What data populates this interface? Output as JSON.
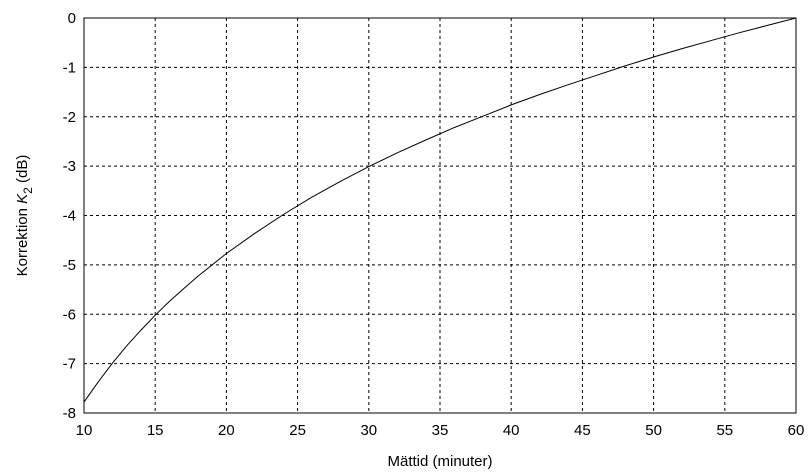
{
  "chart_data": {
    "type": "line",
    "title": "",
    "xlabel": "Mättid (minuter)",
    "ylabel_prefix": "Korrektion ",
    "ylabel_symbol": "K",
    "ylabel_subscript": "2",
    "ylabel_suffix": " (dB)",
    "xlim": [
      10,
      60
    ],
    "ylim": [
      -8,
      0
    ],
    "xticks": [
      10,
      15,
      20,
      25,
      30,
      35,
      40,
      45,
      50,
      55,
      60
    ],
    "yticks": [
      0,
      -1,
      -2,
      -3,
      -4,
      -5,
      -6,
      -7,
      -8
    ],
    "grid": true,
    "grid_style": "dashed",
    "line_color": "#000000",
    "series": [
      {
        "x": [
          10,
          11,
          12,
          13,
          14,
          15,
          16,
          17,
          18,
          19,
          20,
          22,
          24,
          26,
          28,
          30,
          32,
          34,
          36,
          38,
          40,
          42,
          44,
          46,
          48,
          50,
          52,
          54,
          56,
          58,
          60
        ],
        "y": [
          -7.78,
          -7.37,
          -6.99,
          -6.64,
          -6.32,
          -6.02,
          -5.74,
          -5.48,
          -5.23,
          -5.0,
          -4.77,
          -4.36,
          -3.98,
          -3.63,
          -3.31,
          -3.01,
          -2.73,
          -2.47,
          -2.22,
          -1.99,
          -1.76,
          -1.55,
          -1.35,
          -1.16,
          -0.97,
          -0.79,
          -0.62,
          -0.46,
          -0.3,
          -0.15,
          0.0
        ]
      }
    ]
  }
}
